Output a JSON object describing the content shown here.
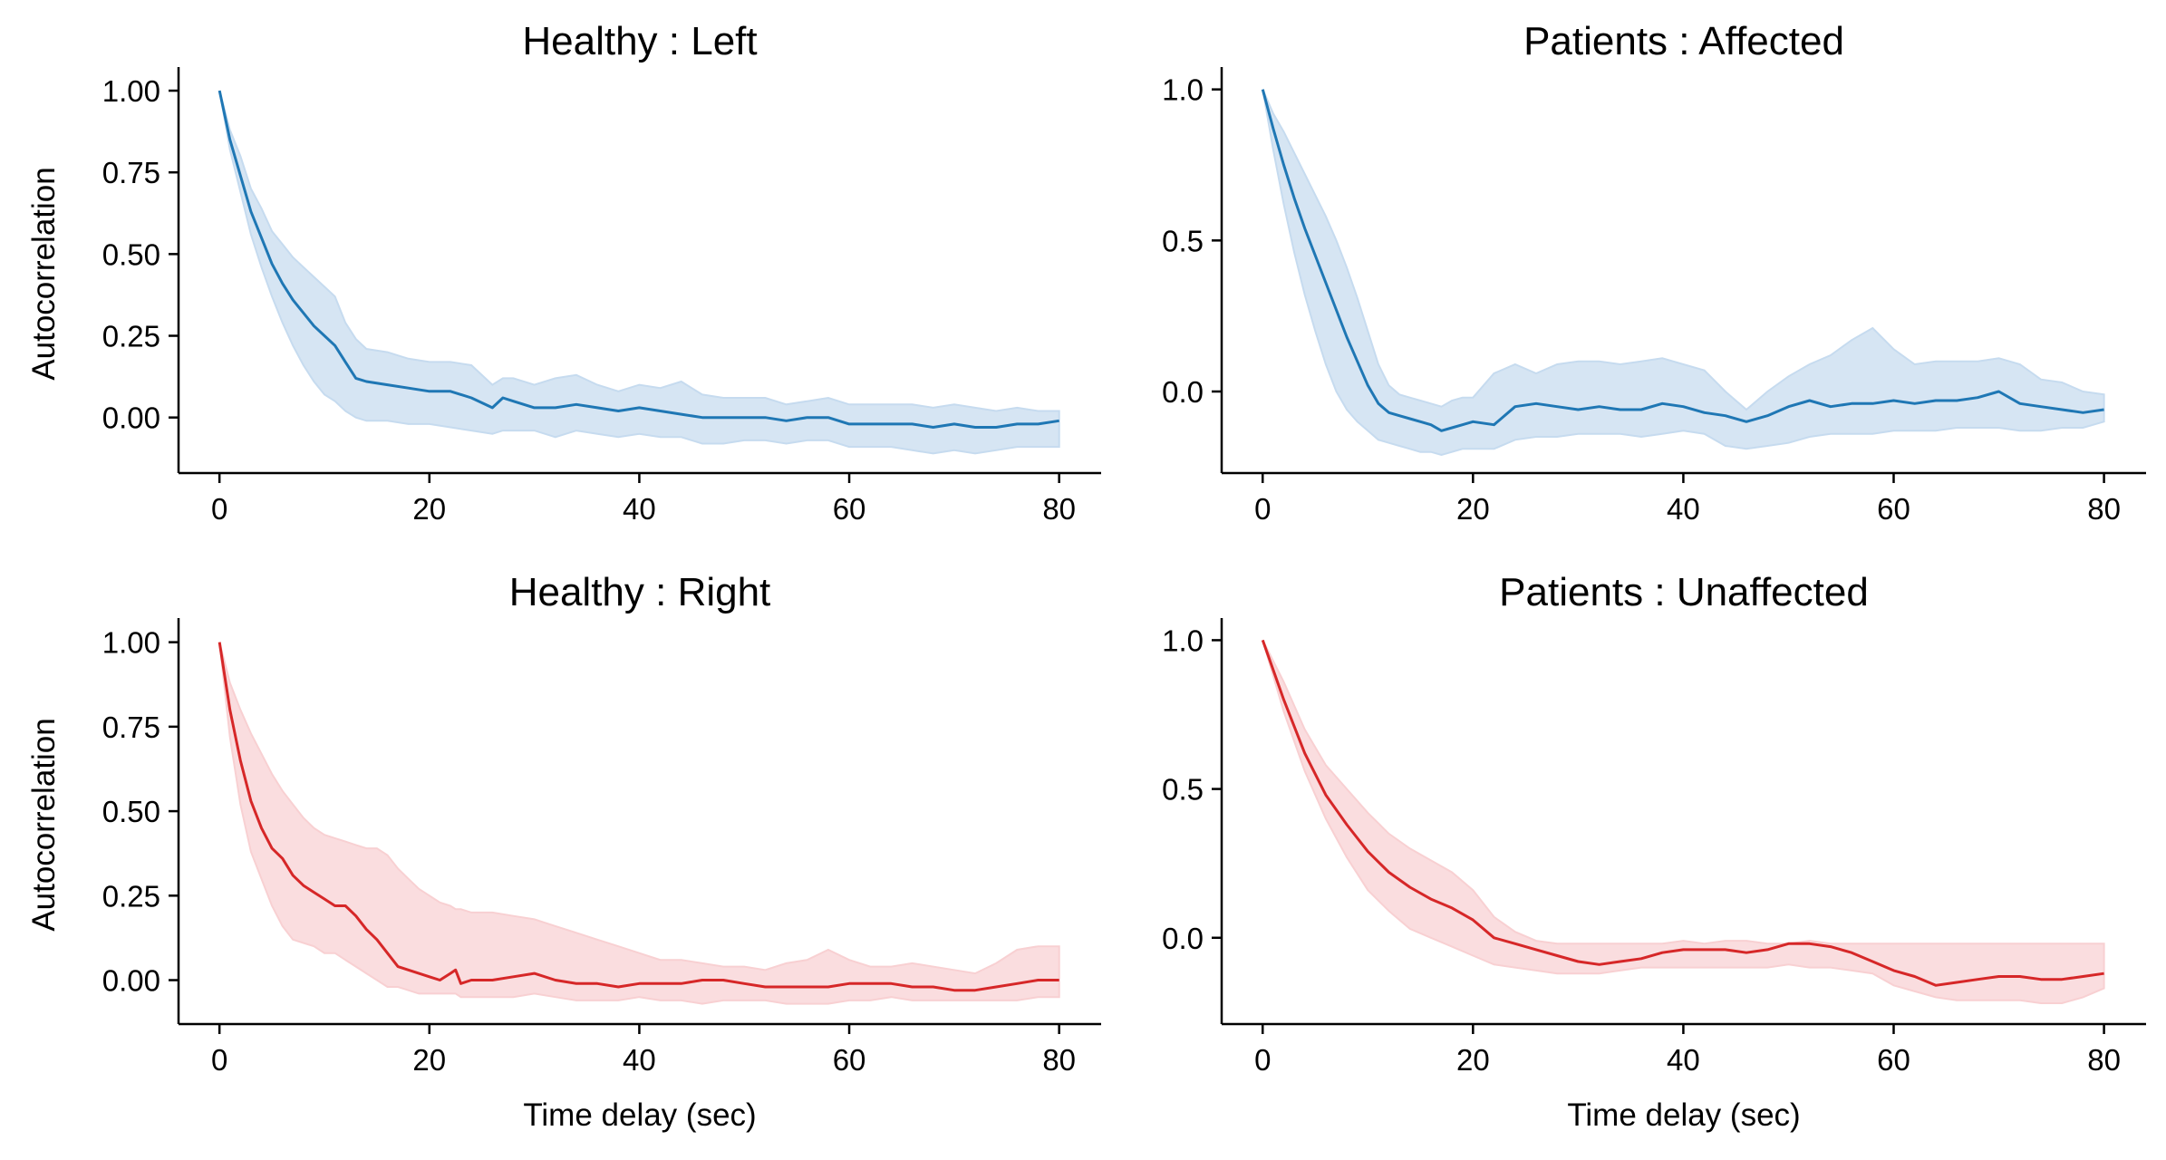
{
  "chart_data": [
    {
      "type": "line",
      "title": "Healthy : Left",
      "xlabel": "",
      "ylabel": "Autocorrelation",
      "xlim": [
        -3.9,
        84
      ],
      "ylim": [
        -0.17,
        1.05
      ],
      "xticks": [
        0,
        20,
        40,
        60,
        80
      ],
      "yticks": [
        0.0,
        0.25,
        0.5,
        0.75,
        1.0
      ],
      "ytick_labels": [
        "0.00",
        "0.25",
        "0.50",
        "0.75",
        "1.00"
      ],
      "grid": false,
      "color": "#1f77b4",
      "band_color": "#c6dbef",
      "x": [
        0,
        1,
        2,
        3,
        4,
        5,
        6,
        7,
        8,
        9,
        10,
        11,
        12,
        13,
        14,
        16,
        18,
        20,
        22,
        24,
        26,
        27,
        28,
        30,
        32,
        34,
        36,
        38,
        40,
        42,
        44,
        46,
        48,
        50,
        52,
        54,
        56,
        58,
        60,
        62,
        64,
        66,
        68,
        70,
        72,
        74,
        76,
        78,
        80
      ],
      "y": [
        1.0,
        0.85,
        0.74,
        0.63,
        0.55,
        0.47,
        0.41,
        0.36,
        0.32,
        0.28,
        0.25,
        0.22,
        0.17,
        0.12,
        0.11,
        0.1,
        0.09,
        0.08,
        0.08,
        0.06,
        0.03,
        0.06,
        0.05,
        0.03,
        0.03,
        0.04,
        0.03,
        0.02,
        0.03,
        0.02,
        0.01,
        0.0,
        0.0,
        0.0,
        0.0,
        -0.01,
        0.0,
        0.0,
        -0.02,
        -0.02,
        -0.02,
        -0.02,
        -0.03,
        -0.02,
        -0.03,
        -0.03,
        -0.02,
        -0.02,
        -0.01
      ],
      "lower": [
        1.0,
        0.82,
        0.69,
        0.56,
        0.46,
        0.37,
        0.29,
        0.22,
        0.16,
        0.11,
        0.07,
        0.05,
        0.02,
        0.0,
        -0.01,
        -0.01,
        -0.02,
        -0.02,
        -0.03,
        -0.04,
        -0.05,
        -0.04,
        -0.04,
        -0.04,
        -0.06,
        -0.04,
        -0.05,
        -0.06,
        -0.05,
        -0.06,
        -0.06,
        -0.08,
        -0.08,
        -0.07,
        -0.07,
        -0.08,
        -0.07,
        -0.07,
        -0.09,
        -0.09,
        -0.09,
        -0.1,
        -0.11,
        -0.1,
        -0.11,
        -0.1,
        -0.09,
        -0.09,
        -0.09
      ],
      "upper": [
        1.0,
        0.88,
        0.8,
        0.7,
        0.64,
        0.57,
        0.53,
        0.49,
        0.46,
        0.43,
        0.4,
        0.37,
        0.29,
        0.24,
        0.21,
        0.2,
        0.18,
        0.17,
        0.17,
        0.16,
        0.1,
        0.12,
        0.12,
        0.1,
        0.12,
        0.13,
        0.1,
        0.08,
        0.1,
        0.09,
        0.11,
        0.07,
        0.06,
        0.06,
        0.06,
        0.04,
        0.05,
        0.06,
        0.04,
        0.04,
        0.04,
        0.04,
        0.03,
        0.04,
        0.03,
        0.02,
        0.03,
        0.02,
        0.02
      ]
    },
    {
      "type": "line",
      "title": "Patients : Affected",
      "xlabel": "",
      "ylabel": "",
      "xlim": [
        -3.9,
        84
      ],
      "ylim": [
        -0.27,
        1.05
      ],
      "xticks": [
        0,
        20,
        40,
        60,
        80
      ],
      "yticks": [
        0.0,
        0.5,
        1.0
      ],
      "ytick_labels": [
        "0.0",
        "0.5",
        "1.0"
      ],
      "grid": false,
      "color": "#1f77b4",
      "band_color": "#c6dbef",
      "x": [
        0,
        1,
        2,
        3,
        4,
        5,
        6,
        7,
        8,
        9,
        10,
        11,
        12,
        13,
        14,
        15,
        16,
        17,
        18,
        19,
        20,
        22,
        24,
        26,
        28,
        30,
        32,
        34,
        36,
        38,
        40,
        42,
        44,
        46,
        48,
        50,
        52,
        54,
        56,
        58,
        60,
        62,
        64,
        66,
        68,
        70,
        72,
        74,
        76,
        78,
        80
      ],
      "y": [
        1.0,
        0.87,
        0.75,
        0.64,
        0.54,
        0.45,
        0.36,
        0.27,
        0.18,
        0.1,
        0.02,
        -0.04,
        -0.07,
        -0.08,
        -0.09,
        -0.1,
        -0.11,
        -0.13,
        -0.12,
        -0.11,
        -0.1,
        -0.11,
        -0.05,
        -0.04,
        -0.05,
        -0.06,
        -0.05,
        -0.06,
        -0.06,
        -0.04,
        -0.05,
        -0.07,
        -0.08,
        -0.1,
        -0.08,
        -0.05,
        -0.03,
        -0.05,
        -0.04,
        -0.04,
        -0.03,
        -0.04,
        -0.03,
        -0.03,
        -0.02,
        0.0,
        -0.04,
        -0.05,
        -0.06,
        -0.07,
        -0.06
      ],
      "lower": [
        1.0,
        0.8,
        0.62,
        0.46,
        0.32,
        0.2,
        0.09,
        0.0,
        -0.06,
        -0.1,
        -0.13,
        -0.16,
        -0.17,
        -0.18,
        -0.19,
        -0.2,
        -0.2,
        -0.21,
        -0.2,
        -0.19,
        -0.19,
        -0.19,
        -0.16,
        -0.15,
        -0.15,
        -0.14,
        -0.14,
        -0.14,
        -0.15,
        -0.14,
        -0.13,
        -0.14,
        -0.18,
        -0.19,
        -0.18,
        -0.17,
        -0.15,
        -0.14,
        -0.14,
        -0.14,
        -0.13,
        -0.13,
        -0.13,
        -0.12,
        -0.12,
        -0.12,
        -0.13,
        -0.13,
        -0.12,
        -0.12,
        -0.1
      ],
      "upper": [
        1.0,
        0.92,
        0.86,
        0.79,
        0.72,
        0.65,
        0.58,
        0.5,
        0.41,
        0.31,
        0.2,
        0.09,
        0.02,
        -0.01,
        -0.02,
        -0.03,
        -0.04,
        -0.05,
        -0.03,
        -0.02,
        -0.02,
        0.06,
        0.09,
        0.06,
        0.09,
        0.1,
        0.1,
        0.09,
        0.1,
        0.11,
        0.09,
        0.07,
        0.0,
        -0.06,
        0.0,
        0.05,
        0.09,
        0.12,
        0.17,
        0.21,
        0.14,
        0.09,
        0.1,
        0.1,
        0.1,
        0.11,
        0.09,
        0.04,
        0.03,
        0.0,
        -0.01
      ]
    },
    {
      "type": "line",
      "title": "Healthy : Right",
      "xlabel": "Time delay (sec)",
      "ylabel": "Autocorrelation",
      "xlim": [
        -3.9,
        84
      ],
      "ylim": [
        -0.13,
        1.05
      ],
      "xticks": [
        0,
        20,
        40,
        60,
        80
      ],
      "yticks": [
        0.0,
        0.25,
        0.5,
        0.75,
        1.0
      ],
      "ytick_labels": [
        "0.00",
        "0.25",
        "0.50",
        "0.75",
        "1.00"
      ],
      "grid": false,
      "color": "#d62728",
      "band_color": "#f8d0d2",
      "x": [
        0,
        1,
        2,
        3,
        4,
        5,
        6,
        7,
        8,
        9,
        10,
        11,
        12,
        13,
        14,
        15,
        16,
        17,
        18,
        19,
        20,
        21,
        22,
        22.5,
        23,
        24,
        26,
        28,
        30,
        32,
        34,
        36,
        38,
        40,
        42,
        44,
        46,
        48,
        50,
        52,
        54,
        56,
        58,
        60,
        62,
        64,
        66,
        68,
        70,
        72,
        74,
        76,
        78,
        80
      ],
      "y": [
        1.0,
        0.8,
        0.65,
        0.53,
        0.45,
        0.39,
        0.36,
        0.31,
        0.28,
        0.26,
        0.24,
        0.22,
        0.22,
        0.19,
        0.15,
        0.12,
        0.08,
        0.04,
        0.03,
        0.02,
        0.01,
        0.0,
        0.02,
        0.03,
        -0.01,
        0.0,
        0.0,
        0.01,
        0.02,
        0.0,
        -0.01,
        -0.01,
        -0.02,
        -0.01,
        -0.01,
        -0.01,
        0.0,
        0.0,
        -0.01,
        -0.02,
        -0.02,
        -0.02,
        -0.02,
        -0.01,
        -0.01,
        -0.01,
        -0.02,
        -0.02,
        -0.03,
        -0.03,
        -0.02,
        -0.01,
        0.0,
        0.0
      ],
      "lower": [
        1.0,
        0.72,
        0.52,
        0.38,
        0.3,
        0.22,
        0.16,
        0.12,
        0.11,
        0.1,
        0.08,
        0.08,
        0.06,
        0.04,
        0.02,
        0.0,
        -0.02,
        -0.02,
        -0.03,
        -0.04,
        -0.04,
        -0.04,
        -0.04,
        -0.04,
        -0.05,
        -0.05,
        -0.05,
        -0.05,
        -0.04,
        -0.05,
        -0.06,
        -0.06,
        -0.06,
        -0.05,
        -0.06,
        -0.06,
        -0.07,
        -0.06,
        -0.06,
        -0.06,
        -0.07,
        -0.07,
        -0.07,
        -0.06,
        -0.06,
        -0.05,
        -0.06,
        -0.06,
        -0.06,
        -0.06,
        -0.06,
        -0.06,
        -0.05,
        -0.05
      ],
      "upper": [
        1.0,
        0.88,
        0.8,
        0.73,
        0.67,
        0.61,
        0.56,
        0.52,
        0.48,
        0.45,
        0.43,
        0.42,
        0.41,
        0.4,
        0.39,
        0.39,
        0.37,
        0.33,
        0.3,
        0.27,
        0.25,
        0.23,
        0.22,
        0.21,
        0.21,
        0.2,
        0.2,
        0.19,
        0.18,
        0.16,
        0.14,
        0.12,
        0.1,
        0.08,
        0.06,
        0.06,
        0.05,
        0.04,
        0.04,
        0.03,
        0.05,
        0.06,
        0.09,
        0.06,
        0.04,
        0.04,
        0.05,
        0.04,
        0.03,
        0.02,
        0.05,
        0.09,
        0.1,
        0.1
      ]
    },
    {
      "type": "line",
      "title": "Patients : Unaffected",
      "xlabel": "Time delay (sec)",
      "ylabel": "",
      "xlim": [
        -3.9,
        84
      ],
      "ylim": [
        -0.29,
        1.05
      ],
      "xticks": [
        0,
        20,
        40,
        60,
        80
      ],
      "yticks": [
        0.0,
        0.5,
        1.0
      ],
      "ytick_labels": [
        "0.0",
        "0.5",
        "1.0"
      ],
      "grid": false,
      "color": "#d62728",
      "band_color": "#f8d0d2",
      "x": [
        0,
        2,
        4,
        6,
        8,
        10,
        12,
        14,
        16,
        18,
        20,
        22,
        24,
        26,
        28,
        30,
        32,
        34,
        36,
        38,
        40,
        42,
        44,
        46,
        48,
        50,
        52,
        54,
        56,
        58,
        60,
        62,
        64,
        66,
        68,
        70,
        72,
        74,
        76,
        78,
        80
      ],
      "y": [
        1.0,
        0.8,
        0.62,
        0.48,
        0.38,
        0.29,
        0.22,
        0.17,
        0.13,
        0.1,
        0.06,
        0.0,
        -0.02,
        -0.04,
        -0.06,
        -0.08,
        -0.09,
        -0.08,
        -0.07,
        -0.05,
        -0.04,
        -0.04,
        -0.04,
        -0.05,
        -0.04,
        -0.02,
        -0.02,
        -0.03,
        -0.05,
        -0.08,
        -0.11,
        -0.13,
        -0.16,
        -0.15,
        -0.14,
        -0.13,
        -0.13,
        -0.14,
        -0.14,
        -0.13,
        -0.12
      ],
      "lower": [
        1.0,
        0.76,
        0.56,
        0.4,
        0.27,
        0.16,
        0.09,
        0.03,
        0.0,
        -0.03,
        -0.06,
        -0.09,
        -0.1,
        -0.11,
        -0.12,
        -0.12,
        -0.12,
        -0.11,
        -0.1,
        -0.1,
        -0.1,
        -0.1,
        -0.1,
        -0.1,
        -0.1,
        -0.09,
        -0.1,
        -0.1,
        -0.11,
        -0.12,
        -0.16,
        -0.18,
        -0.2,
        -0.21,
        -0.21,
        -0.21,
        -0.21,
        -0.22,
        -0.22,
        -0.2,
        -0.17
      ],
      "upper": [
        1.0,
        0.86,
        0.7,
        0.58,
        0.5,
        0.42,
        0.35,
        0.3,
        0.26,
        0.22,
        0.16,
        0.07,
        0.02,
        -0.01,
        -0.02,
        -0.02,
        -0.02,
        -0.02,
        -0.02,
        -0.02,
        -0.01,
        -0.02,
        -0.01,
        -0.01,
        -0.02,
        -0.02,
        -0.01,
        -0.02,
        -0.02,
        -0.02,
        -0.02,
        -0.02,
        -0.02,
        -0.02,
        -0.02,
        -0.02,
        -0.02,
        -0.02,
        -0.02,
        -0.02,
        -0.02
      ]
    }
  ]
}
